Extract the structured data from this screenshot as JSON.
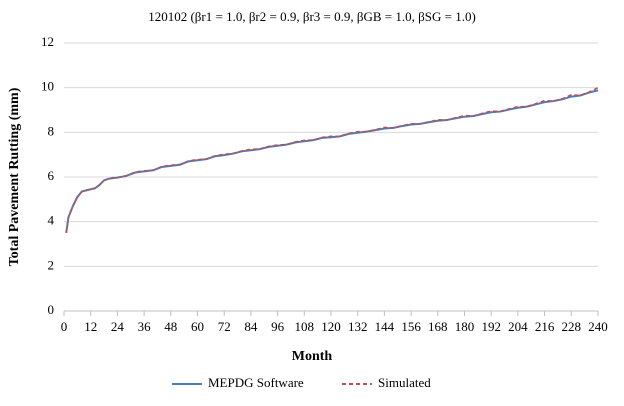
{
  "chart_data": {
    "type": "line",
    "title": "120102 (βr1 = 1.0, βr2 = 0.9, βr3 = 0.9, βGB = 1.0, βSG = 1.0)",
    "x_label": "Month",
    "y_label": "Total Pavement Rutting (mm)",
    "x": [
      1,
      2,
      4,
      6,
      8,
      10,
      12,
      14,
      16,
      18,
      20,
      22,
      24,
      28,
      32,
      36,
      40,
      44,
      48,
      52,
      56,
      60,
      64,
      68,
      72,
      76,
      80,
      84,
      88,
      92,
      96,
      100,
      104,
      108,
      112,
      116,
      120,
      124,
      128,
      132,
      136,
      140,
      144,
      148,
      152,
      156,
      160,
      164,
      168,
      172,
      176,
      180,
      184,
      188,
      192,
      196,
      200,
      204,
      208,
      212,
      216,
      220,
      224,
      228,
      232,
      236,
      240
    ],
    "series": [
      {
        "name": "MEPDG Software",
        "color": "#4a7ebb",
        "dashed": false,
        "values": [
          3.5,
          4.2,
          4.7,
          5.1,
          5.35,
          5.4,
          5.45,
          5.5,
          5.65,
          5.85,
          5.92,
          5.95,
          5.97,
          6.05,
          6.2,
          6.25,
          6.3,
          6.45,
          6.5,
          6.55,
          6.7,
          6.75,
          6.8,
          6.93,
          6.98,
          7.05,
          7.15,
          7.2,
          7.25,
          7.35,
          7.4,
          7.45,
          7.55,
          7.6,
          7.65,
          7.75,
          7.78,
          7.82,
          7.93,
          7.98,
          8.03,
          8.1,
          8.17,
          8.2,
          8.28,
          8.35,
          8.38,
          8.45,
          8.52,
          8.55,
          8.63,
          8.7,
          8.73,
          8.82,
          8.9,
          8.93,
          9.02,
          9.1,
          9.15,
          9.25,
          9.35,
          9.4,
          9.48,
          9.6,
          9.65,
          9.78,
          9.88
        ]
      },
      {
        "name": "Simulated",
        "color": "#c0504d",
        "dashed": true,
        "values": [
          3.5,
          4.2,
          4.7,
          5.1,
          5.35,
          5.4,
          5.45,
          5.5,
          5.65,
          5.85,
          5.92,
          5.97,
          5.98,
          6.05,
          6.22,
          6.27,
          6.3,
          6.47,
          6.53,
          6.55,
          6.72,
          6.78,
          6.8,
          6.95,
          7.02,
          7.05,
          7.17,
          7.24,
          7.25,
          7.37,
          7.43,
          7.45,
          7.57,
          7.64,
          7.65,
          7.77,
          7.82,
          7.82,
          7.95,
          8.03,
          8.03,
          8.12,
          8.22,
          8.2,
          8.3,
          8.38,
          8.38,
          8.47,
          8.56,
          8.55,
          8.65,
          8.75,
          8.73,
          8.85,
          8.95,
          8.93,
          9.05,
          9.15,
          9.15,
          9.28,
          9.42,
          9.4,
          9.5,
          9.68,
          9.65,
          9.8,
          10.0
        ]
      }
    ],
    "xlim": [
      0,
      240
    ],
    "xticks": [
      0,
      12,
      24,
      36,
      48,
      60,
      72,
      84,
      96,
      108,
      120,
      132,
      144,
      156,
      168,
      180,
      192,
      204,
      216,
      228,
      240
    ],
    "ylim": [
      0,
      12
    ],
    "yticks": [
      0,
      2,
      4,
      6,
      8,
      10,
      12
    ],
    "grid": true,
    "legend": "bottom"
  }
}
